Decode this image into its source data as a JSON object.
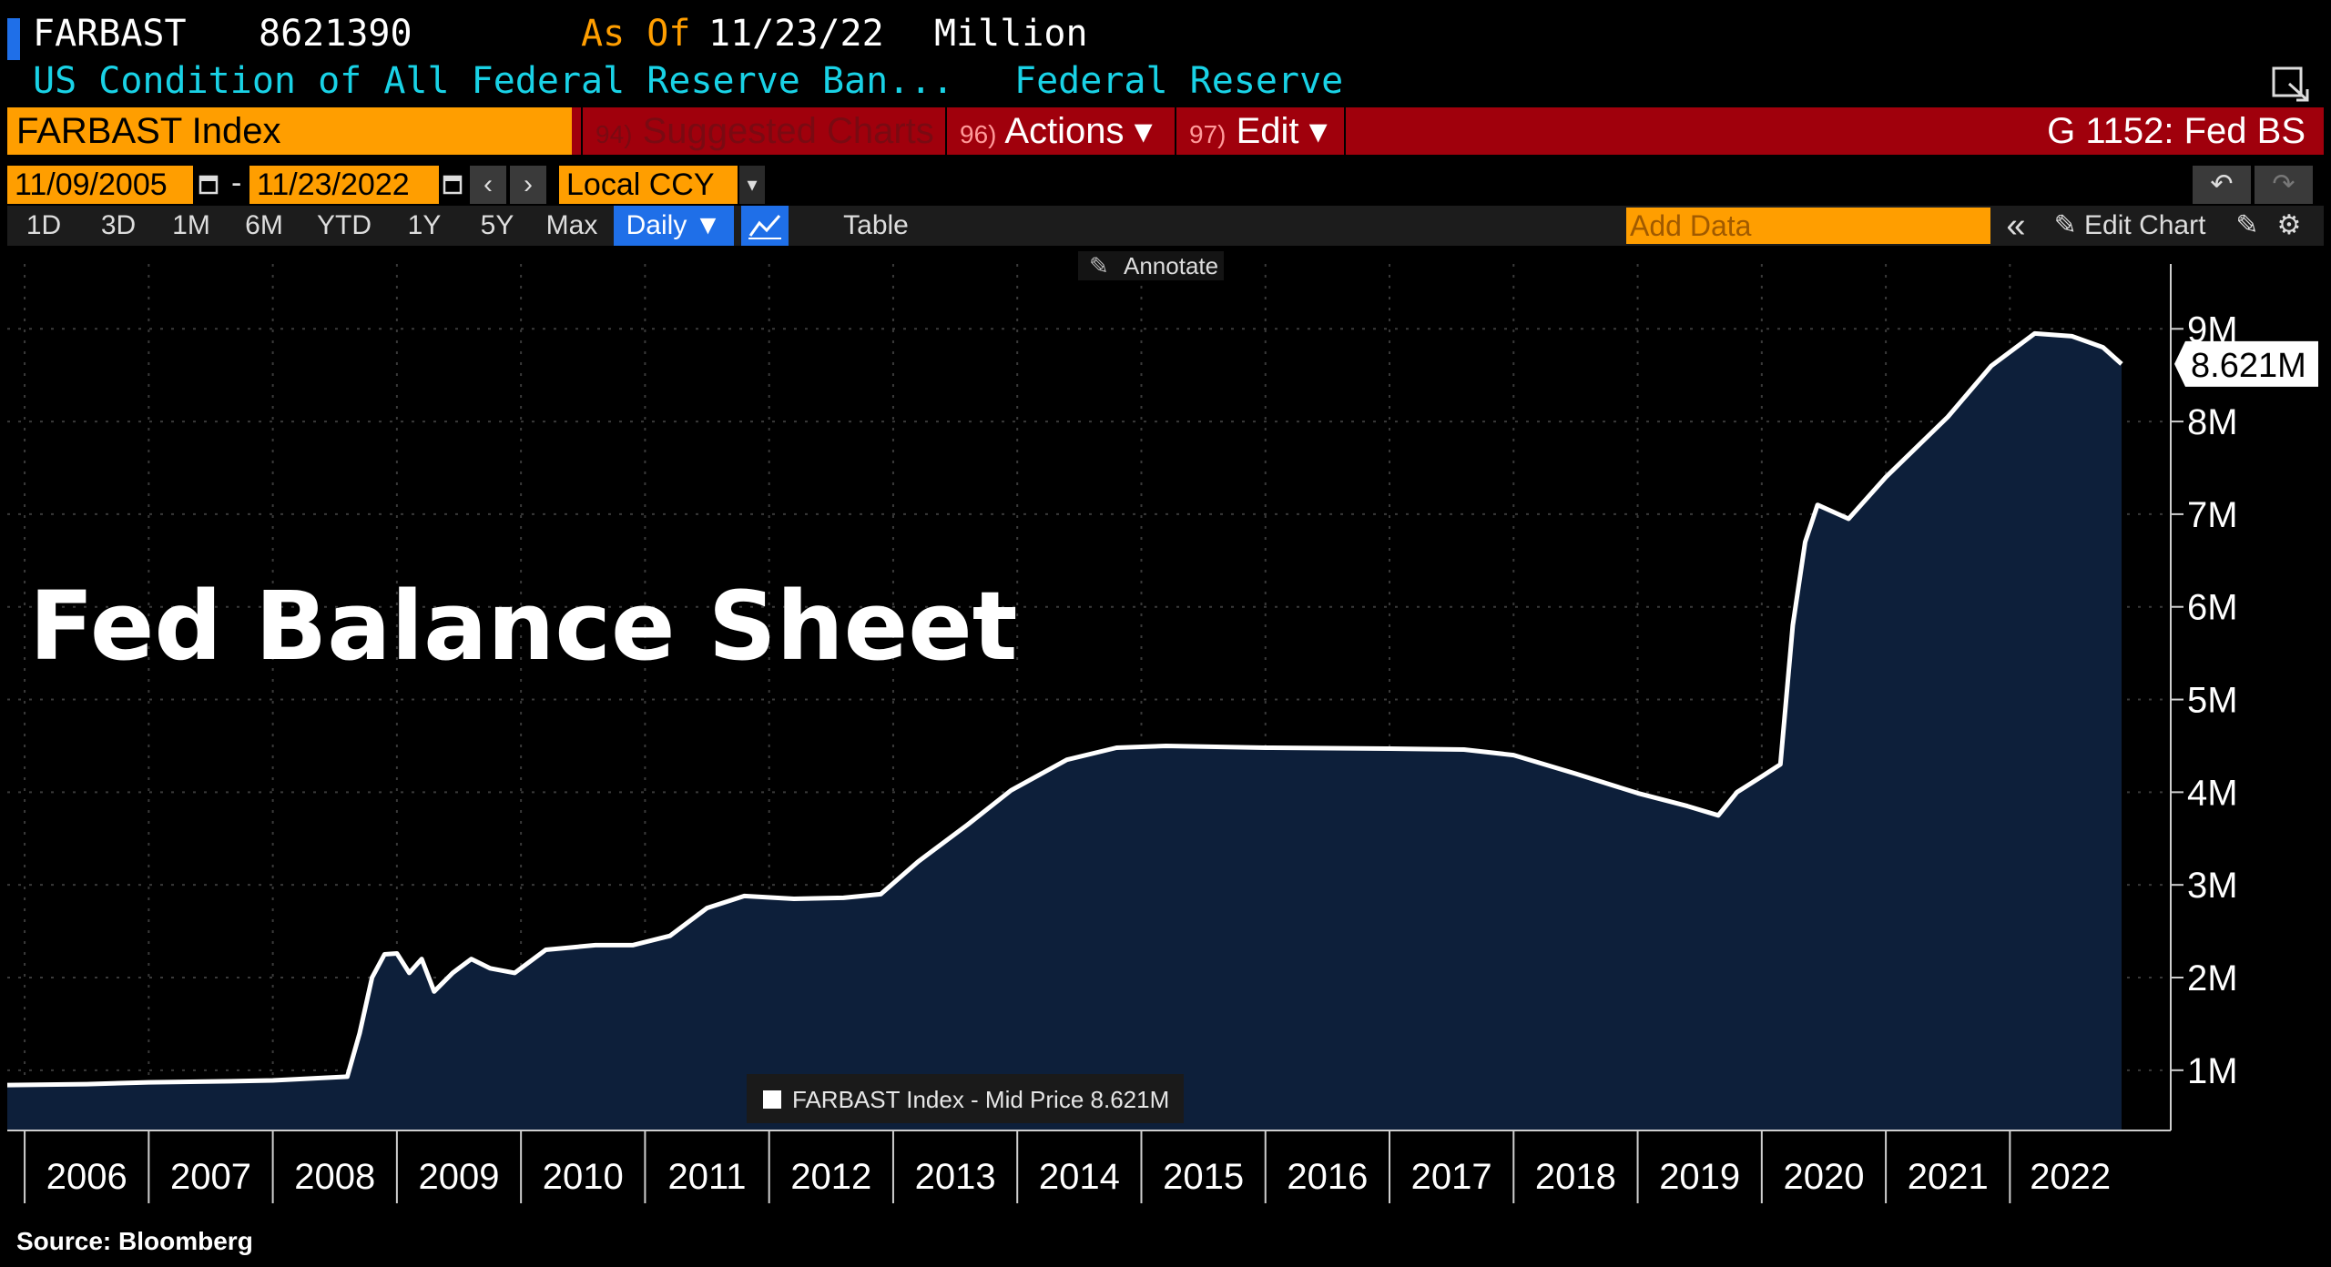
{
  "header": {
    "ticker": "FARBAST",
    "value": "8621390",
    "as_of_label": "As Of",
    "as_of_date": "11/23/22",
    "unit": "Million",
    "description": "US Condition of All Federal Reserve Ban...",
    "source_name": "Federal Reserve"
  },
  "command_bar": {
    "security": "FARBAST Index",
    "suggested_num": "94)",
    "suggested_label": "Suggested Charts",
    "actions_num": "96)",
    "actions_label": "Actions ▾",
    "edit_num": "97)",
    "edit_label": "Edit ▾",
    "function_code": "G 1152: Fed BS"
  },
  "date_bar": {
    "start_date": "11/09/2005",
    "end_date": "11/23/2022",
    "separator": "-",
    "currency": "Local CCY"
  },
  "range_bar": {
    "ranges": [
      "1D",
      "3D",
      "1M",
      "6M",
      "YTD",
      "1Y",
      "5Y",
      "Max"
    ],
    "frequency": "Daily ▼",
    "table_label": "Table",
    "add_data_placeholder": "Add Data",
    "edit_chart_label": "Edit Chart"
  },
  "annotate_label": "Annotate",
  "legend_text": "FARBAST Index - Mid Price 8.621M",
  "last_value_label": "8.621M",
  "overlay_title": "Fed Balance Sheet",
  "footer_source": "Source: Bloomberg",
  "colors": {
    "area_fill": "#0d1f3a",
    "line": "#ffffff",
    "accent_orange": "#ff9e00",
    "bar_red": "#a0000c",
    "cyan_text": "#19d2e6"
  },
  "chart_data": {
    "type": "area",
    "title": "Fed Balance Sheet",
    "series": [
      {
        "name": "FARBAST Index - Mid Price",
        "points": [
          [
            2005.86,
            0.84
          ],
          [
            2006.5,
            0.85
          ],
          [
            2007.0,
            0.87
          ],
          [
            2007.6,
            0.88
          ],
          [
            2008.0,
            0.89
          ],
          [
            2008.6,
            0.93
          ],
          [
            2008.7,
            1.4
          ],
          [
            2008.8,
            2.0
          ],
          [
            2008.9,
            2.25
          ],
          [
            2009.0,
            2.26
          ],
          [
            2009.1,
            2.05
          ],
          [
            2009.2,
            2.2
          ],
          [
            2009.3,
            1.85
          ],
          [
            2009.45,
            2.05
          ],
          [
            2009.6,
            2.2
          ],
          [
            2009.75,
            2.1
          ],
          [
            2009.95,
            2.05
          ],
          [
            2010.2,
            2.3
          ],
          [
            2010.6,
            2.35
          ],
          [
            2010.9,
            2.35
          ],
          [
            2011.2,
            2.45
          ],
          [
            2011.5,
            2.75
          ],
          [
            2011.8,
            2.88
          ],
          [
            2012.2,
            2.85
          ],
          [
            2012.6,
            2.86
          ],
          [
            2012.9,
            2.9
          ],
          [
            2013.2,
            3.25
          ],
          [
            2013.6,
            3.65
          ],
          [
            2013.95,
            4.02
          ],
          [
            2014.4,
            4.35
          ],
          [
            2014.8,
            4.48
          ],
          [
            2015.2,
            4.5
          ],
          [
            2016.0,
            4.48
          ],
          [
            2017.0,
            4.47
          ],
          [
            2017.6,
            4.46
          ],
          [
            2018.0,
            4.4
          ],
          [
            2018.5,
            4.2
          ],
          [
            2019.0,
            3.99
          ],
          [
            2019.4,
            3.85
          ],
          [
            2019.65,
            3.75
          ],
          [
            2019.8,
            4.0
          ],
          [
            2020.0,
            4.17
          ],
          [
            2020.15,
            4.3
          ],
          [
            2020.25,
            5.8
          ],
          [
            2020.35,
            6.7
          ],
          [
            2020.45,
            7.1
          ],
          [
            2020.7,
            6.95
          ],
          [
            2021.0,
            7.4
          ],
          [
            2021.5,
            8.05
          ],
          [
            2021.85,
            8.6
          ],
          [
            2022.2,
            8.95
          ],
          [
            2022.5,
            8.92
          ],
          [
            2022.75,
            8.8
          ],
          [
            2022.9,
            8.621
          ]
        ]
      }
    ],
    "x_ticks": [
      "2006",
      "2007",
      "2008",
      "2009",
      "2010",
      "2011",
      "2012",
      "2013",
      "2014",
      "2015",
      "2016",
      "2017",
      "2018",
      "2019",
      "2020",
      "2021",
      "2022"
    ],
    "x_range": [
      2005.86,
      2022.9
    ],
    "y_ticks": [
      "1M",
      "2M",
      "3M",
      "4M",
      "5M",
      "6M",
      "7M",
      "8M",
      "9M"
    ],
    "y_range": [
      0.35,
      9.7
    ],
    "y_unit": "M",
    "grid": true,
    "legend_position": "bottom-center"
  }
}
